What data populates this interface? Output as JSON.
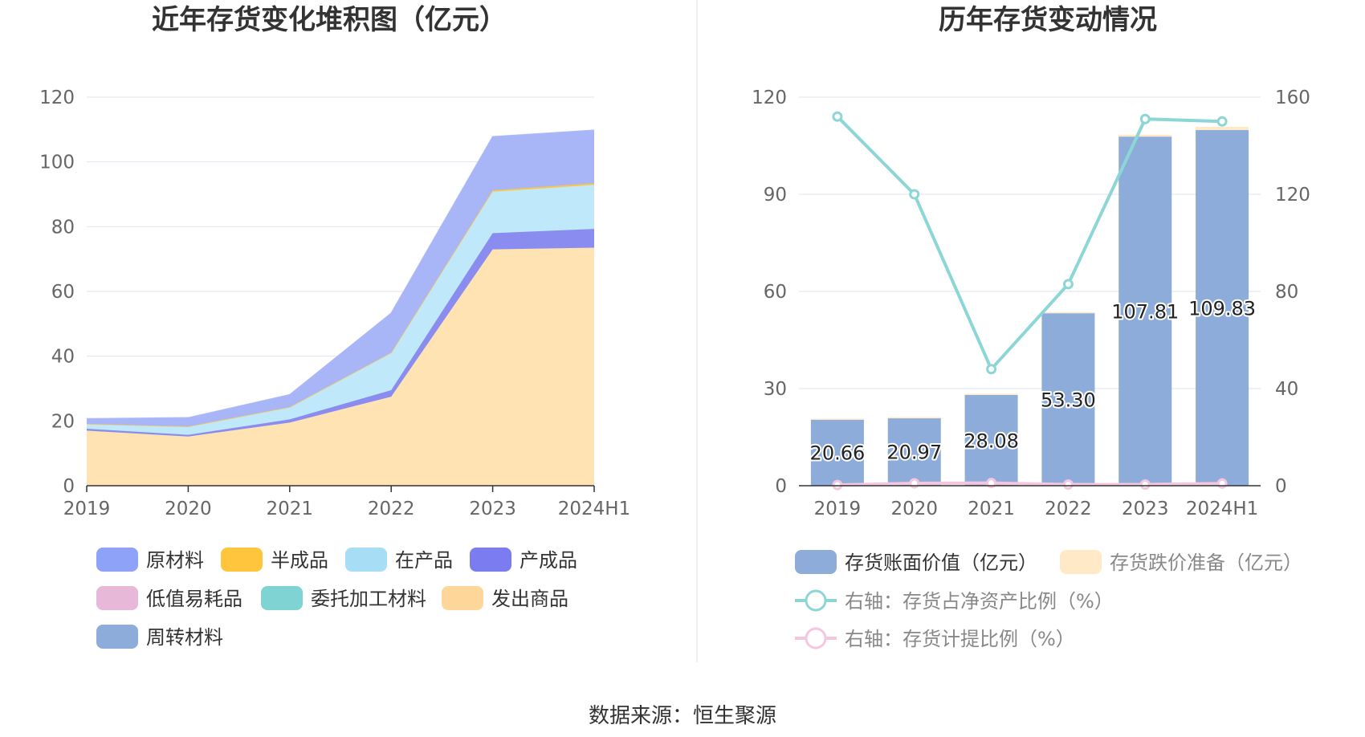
{
  "source": "数据来源：恒生聚源",
  "chart_data": [
    {
      "type": "area",
      "stacked": true,
      "title": "近年存货变化堆积图（亿元）",
      "categories": [
        "2019",
        "2020",
        "2021",
        "2022",
        "2023",
        "2024H1"
      ],
      "ylim": [
        0,
        120
      ],
      "yticks": [
        0,
        20,
        40,
        60,
        80,
        100,
        120
      ],
      "grid": true,
      "legend_position": "bottom",
      "legend": [
        "原材料",
        "半成品",
        "在产品",
        "产成品",
        "低值易耗品",
        "委托加工材料",
        "发出商品",
        "周转材料"
      ],
      "series": [
        {
          "name": "发出商品",
          "color": "#ffe3b3",
          "values": [
            17.0,
            15.2,
            19.5,
            27.5,
            73.0,
            73.5
          ]
        },
        {
          "name": "委托加工材料",
          "color": "#7fd3d3",
          "values": [
            0,
            0,
            0,
            0,
            0,
            0
          ]
        },
        {
          "name": "低值易耗品",
          "color": "#e8b8d9",
          "values": [
            0,
            0,
            0,
            0,
            0,
            0
          ]
        },
        {
          "name": "产成品",
          "color": "#8b8cf0",
          "values": [
            0.6,
            0.5,
            1.0,
            2.0,
            5.0,
            5.8
          ]
        },
        {
          "name": "在产品",
          "color": "#bfe8fb",
          "values": [
            1.5,
            2.6,
            3.8,
            11.6,
            12.8,
            13.6
          ]
        },
        {
          "name": "半成品",
          "color": "#ffc53d",
          "values": [
            0,
            0,
            0,
            0,
            0.4,
            0.5
          ]
        },
        {
          "name": "原材料",
          "color": "#a8b6f8",
          "values": [
            1.6,
            2.7,
            3.8,
            12.2,
            16.6,
            16.4
          ]
        },
        {
          "name": "周转材料",
          "color": "#8eacd9",
          "values": [
            0,
            0,
            0,
            0,
            0,
            0
          ]
        }
      ],
      "legend_colors": {
        "原材料": "#8ea3f7",
        "半成品": "#ffc53d",
        "在产品": "#a8ddf6",
        "产成品": "#7b7cf0",
        "低值易耗品": "#e8b8d9",
        "委托加工材料": "#7fd3d3",
        "发出商品": "#ffd699",
        "周转材料": "#8eacd9"
      }
    },
    {
      "type": "bar+line",
      "title": "历年存货变动情况",
      "categories": [
        "2019",
        "2020",
        "2021",
        "2022",
        "2023",
        "2024H1"
      ],
      "ylim": [
        0,
        120
      ],
      "yticks": [
        0,
        30,
        60,
        90,
        120
      ],
      "y2lim": [
        0,
        160
      ],
      "y2ticks": [
        0,
        40,
        80,
        120,
        160
      ],
      "grid": true,
      "legend_position": "bottom",
      "bars": [
        {
          "name": "存货账面价值（亿元）",
          "color": "#8eacd9",
          "values": [
            20.66,
            20.97,
            28.08,
            53.3,
            107.81,
            109.83
          ],
          "labels": [
            "20.66",
            "20.97",
            "28.08",
            "53.30",
            "107.81",
            "109.83"
          ]
        },
        {
          "name": "存货跌价准备（亿元）",
          "color": "#ffe9c7",
          "values": [
            0.05,
            0.2,
            0.3,
            0.3,
            0.6,
            1.0
          ]
        }
      ],
      "lines": [
        {
          "name": "右轴：存货占净资产比例（%）",
          "color": "#8dd6d6",
          "axis": "right",
          "values": [
            152,
            120,
            48,
            83,
            151,
            150
          ]
        },
        {
          "name": "右轴：存货计提比例（%）",
          "color": "#f4c6df",
          "axis": "right",
          "values": [
            0.3,
            1.0,
            1.1,
            0.5,
            0.5,
            0.9
          ]
        }
      ]
    }
  ]
}
